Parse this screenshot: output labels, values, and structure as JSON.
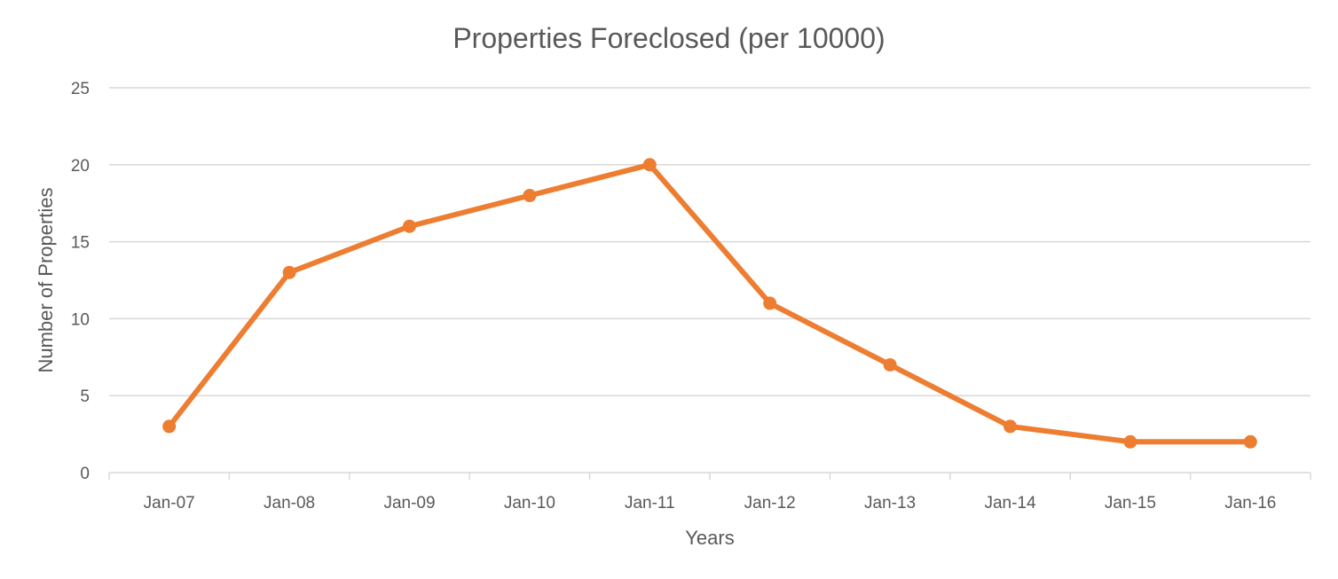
{
  "chart_data": {
    "type": "line",
    "title": "Properties Foreclosed (per 10000)",
    "xlabel": "Years",
    "ylabel": "Number of Properties",
    "categories": [
      "Jan-07",
      "Jan-08",
      "Jan-09",
      "Jan-10",
      "Jan-11",
      "Jan-12",
      "Jan-13",
      "Jan-14",
      "Jan-15",
      "Jan-16"
    ],
    "series": [
      {
        "values": [
          3,
          13,
          16,
          18,
          20,
          11,
          7,
          3,
          2,
          2
        ],
        "color": "#ed7d31"
      }
    ],
    "ylim": [
      0,
      25
    ],
    "yticks": [
      0,
      5,
      10,
      15,
      20,
      25
    ],
    "grid": true,
    "legend": "none"
  }
}
